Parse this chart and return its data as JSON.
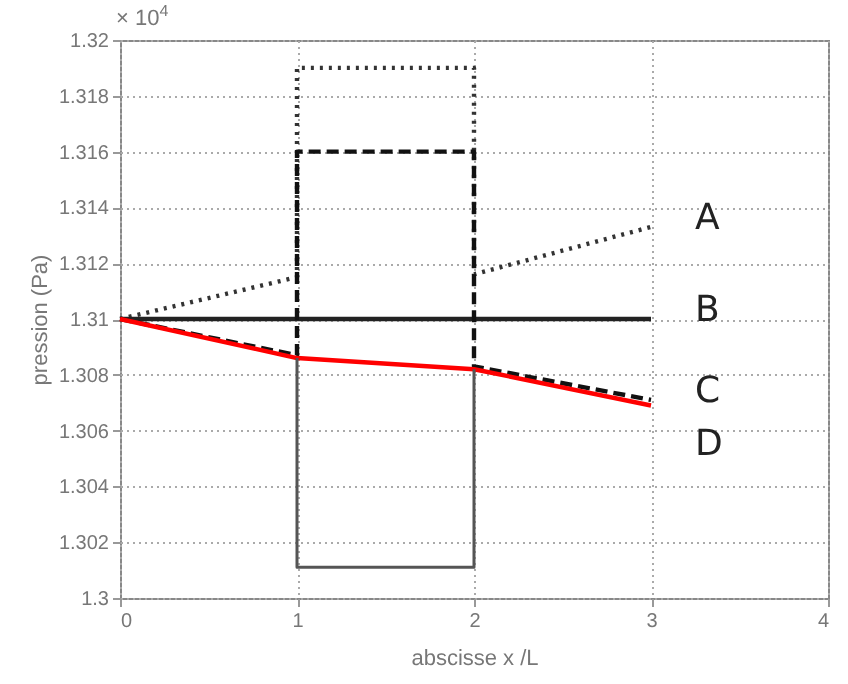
{
  "chart_data": {
    "type": "line",
    "xlabel": "abscisse x /L",
    "ylabel": "pression (Pa)",
    "annotations": [
      "× 10$^{4}$"
    ],
    "series": [
      {
        "name": "A",
        "color": "#333333",
        "line_style": "dotted",
        "x": [
          0,
          1,
          1,
          2,
          2,
          3
        ],
        "values": [
          1.31,
          1.3115,
          1.319,
          1.319,
          1.3116,
          1.3133
        ]
      },
      {
        "name": "B",
        "color": "#222222",
        "line_style": "solid",
        "x": [
          0,
          3
        ],
        "values": [
          1.31,
          1.31
        ]
      },
      {
        "name": "C",
        "color": "#111111",
        "line_style": "dashed",
        "x": [
          0,
          1,
          1,
          2,
          2,
          3
        ],
        "values": [
          1.31,
          1.3087,
          1.316,
          1.316,
          1.3083,
          1.3071
        ]
      },
      {
        "name": "D",
        "color": "#ff0000",
        "line_style": "solid",
        "x": [
          0,
          1,
          2,
          3
        ],
        "values": [
          1.31,
          1.3086,
          1.3082,
          1.3069
        ]
      },
      {
        "color": "#555555",
        "line_style": "solid",
        "x": [
          1,
          1,
          2,
          2
        ],
        "values": [
          1.3086,
          1.3011,
          1.3011,
          1.3082
        ]
      }
    ],
    "xlim": [
      0,
      4
    ],
    "xticks": [
      0,
      1,
      2,
      3,
      4
    ],
    "ylim": [
      1.3,
      1.32
    ],
    "yticks": [
      1.3,
      1.302,
      1.304,
      1.306,
      1.308,
      1.31,
      1.312,
      1.314,
      1.316,
      1.318,
      1.32
    ],
    "grid": true,
    "marker": "none"
  }
}
